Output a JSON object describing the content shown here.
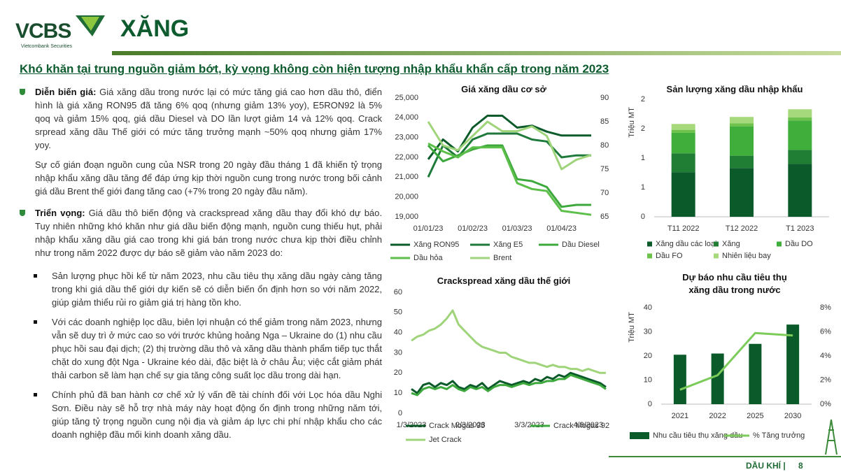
{
  "header": {
    "logo": "VCBS",
    "logo_subtitle": "Vietcombank Securities",
    "title": "XĂNG"
  },
  "heading": "Khó khăn tại trung nguồn giảm bớt, kỳ vọng không còn hiện tượng nhập khẩu khẩn cấp trong năm 2023",
  "price": {
    "label": "Diễn biến giá:",
    "text": "Giá xăng dầu trong nước lại có mức tăng giá cao hơn dầu thô, điển hình là giá xăng RON95 đã tăng 6% qoq (nhưng giảm 13% yoy), E5RON92 là 5% qoq và giảm 15% qoq, giá dầu Diesel và DO lần lượt giảm 14 và 12% qoq. Crack srpread xăng dầu Thế giới có mức tăng trưởng mạnh ~50% qoq nhưng giảm 17% yoy.",
    "note": "Sự cố gián đoạn nguồn cung của NSR trong 20 ngày đầu tháng 1 đã khiến tỷ trọng nhập khẩu xăng dầu tăng để đáp ứng kịp thời nguồn cung trong nước trong bối cảnh giá dầu Brent thế giới đang tăng cao (+7% trong 20 ngày đầu năm)."
  },
  "outlook": {
    "label": "Triển vọng:",
    "text": "Giá dầu thô biến động và crackspread xăng dầu thay đổi khó dự báo. Tuy nhiên những khó khăn như giá dầu biến động mạnh, nguồn cung thiếu hụt, phải nhập khẩu xăng dầu giá cao trong khi giá bán trong nước chưa kịp thời điều chỉnh như trong năm 2022 được dự báo sẽ giảm vào năm 2023 do:",
    "bullets": [
      "Sản lượng phục hồi kể từ năm 2023, nhu cầu tiêu thụ xăng dầu ngày càng tăng trong khi giá dầu thế giới dự kiến sẽ có diễn biến ổn định hơn so với năm 2022, giúp giảm thiểu rủi ro giảm giá trị hàng tồn kho.",
      "Với các doanh nghiệp lọc dầu, biên lợi nhuận có thể giảm trong năm 2023, nhưng vẫn sẽ duy trì ở mức cao so với trước khủng hoảng Nga – Ukraine do (1) nhu cầu phục hồi sau đại dịch; (2) thị trường dầu thô và xăng dầu thành phẩm tiếp tục thắt chặt do xung đột Nga - Ukraine kéo dài, đặc biệt là ở châu Âu; việc cắt giảm phát thải carbon sẽ làm hạn chế sự gia tăng công suất lọc dầu trong dài hạn.",
      "Chính phủ đã ban hành cơ chế xử lý vấn đề tài chính đối với Lọc hóa dầu Nghi Sơn. Điều này sẽ hỗ trợ nhà máy này hoạt động ổn định trong những năm tới, giúp tăng tỷ trọng nguồn cung nội địa và giảm áp lực chi phí nhập khẩu cho các doanh nghiệp đầu mối kinh doanh xăng dầu."
    ]
  },
  "footer": {
    "section": "DẦU KHÍ |",
    "page": "8"
  },
  "chart_data": [
    {
      "type": "line",
      "title": "Giá xăng dầu cơ sở",
      "categories": [
        "01/01/23",
        null,
        null,
        "01/02/23",
        null,
        null,
        "01/03/23",
        null,
        null,
        "01/04/23",
        null,
        null
      ],
      "ylim": [
        19000,
        25000
      ],
      "yticks": [
        {
          "value": 19000,
          "label": "19,000"
        },
        {
          "value": 20000,
          "label": "20,000"
        },
        {
          "value": 21000,
          "label": "21,000"
        },
        {
          "value": 22000,
          "label": "22,000"
        },
        {
          "value": 23000,
          "label": "23,000"
        },
        {
          "value": 24000,
          "label": "24,000"
        },
        {
          "value": 25000,
          "label": "25,000"
        }
      ],
      "y2lim": [
        65,
        90
      ],
      "y2ticks": [
        65,
        70,
        75,
        80,
        85,
        90
      ],
      "grid": false,
      "series": [
        {
          "name": "Xăng RON95",
          "color": "#0b5a2a",
          "values": [
            21900,
            22900,
            22300,
            23500,
            24100,
            24100,
            23500,
            23600,
            23300,
            23100,
            23100,
            23100
          ]
        },
        {
          "name": "Xăng E5",
          "color": "#1e7a3a",
          "values": [
            21000,
            22600,
            22000,
            22900,
            23200,
            23200,
            23200,
            22900,
            22800,
            22000,
            22100,
            22100
          ]
        },
        {
          "name": "Dầu Diesel",
          "color": "#3da83c",
          "values": [
            22600,
            21800,
            22100,
            22400,
            22600,
            22600,
            20900,
            20800,
            20500,
            19500,
            19600,
            19600
          ]
        },
        {
          "name": "Dầu hỏa",
          "color": "#5cbf4a",
          "values": [
            22700,
            22300,
            22000,
            22500,
            22500,
            22500,
            20700,
            20400,
            20300,
            19300,
            19200,
            19100
          ]
        },
        {
          "name": "Brent",
          "color": "#9fd47a",
          "axis": "y2",
          "values": [
            85,
            80,
            79,
            82,
            85,
            83,
            83,
            84,
            82,
            75,
            77,
            78
          ]
        }
      ]
    },
    {
      "type": "bar",
      "stacked": true,
      "title": "Sản lượng xăng dầu nhập khẩu",
      "ylabel": "Triệu MT",
      "categories": [
        "T11 2022",
        "T12 2022",
        "T1 2023"
      ],
      "ylim": [
        0,
        2
      ],
      "yticks": [
        0,
        {
          "value": 0.5,
          "label": "1"
        },
        1,
        {
          "value": 1.5,
          "label": "2"
        },
        2
      ],
      "grid": false,
      "series": [
        {
          "name": "Xăng dầu các loại",
          "color": "#0b5a2a",
          "values": [
            0.76,
            0.83,
            0.9
          ]
        },
        {
          "name": "Xăng",
          "color": "#1f7d34",
          "values": [
            0.32,
            0.21,
            0.24
          ]
        },
        {
          "name": "Dầu DO",
          "color": "#3fae3a",
          "values": [
            0.35,
            0.5,
            0.5
          ]
        },
        {
          "name": "Dầu FO",
          "color": "#6cc24a",
          "values": [
            0.05,
            0.05,
            0.05
          ]
        },
        {
          "name": "Nhiên liệu bay",
          "color": "#a6d97c",
          "values": [
            0.1,
            0.11,
            0.14
          ]
        }
      ]
    },
    {
      "type": "line",
      "title": "Crackspread xăng dầu thế giới",
      "categories": [
        "1/3/2023",
        null,
        null,
        null,
        null,
        null,
        null,
        null,
        null,
        null,
        "2/3/2023",
        null,
        null,
        null,
        null,
        null,
        null,
        null,
        null,
        null,
        "3/3/2023",
        null,
        null,
        null,
        null,
        null,
        null,
        null,
        null,
        null,
        "4/3/2023",
        null,
        null,
        null
      ],
      "ylim": [
        0,
        60
      ],
      "yticks": [
        0,
        10,
        20,
        30,
        40,
        50,
        60
      ],
      "grid": false,
      "series": [
        {
          "name": "Crack Mogas 95",
          "color": "#0b5a2a",
          "values": [
            12,
            10,
            14,
            15,
            13,
            15,
            14,
            16,
            13,
            12,
            14,
            13,
            15,
            12,
            14,
            16,
            15,
            14,
            15,
            16,
            15,
            17,
            16,
            18,
            17,
            19,
            18,
            20,
            19,
            18,
            17,
            16,
            15,
            13
          ]
        },
        {
          "name": "Crack Mogas 92",
          "color": "#3da83c",
          "values": [
            10,
            9,
            12,
            13,
            12,
            13,
            12,
            14,
            12,
            11,
            13,
            12,
            13,
            11,
            13,
            14,
            14,
            13,
            14,
            15,
            14,
            15,
            15,
            16,
            16,
            17,
            17,
            19,
            18,
            17,
            16,
            15,
            14,
            12
          ]
        },
        {
          "name": "Jet Crack",
          "color": "#9fd47a",
          "values": [
            36,
            38,
            39,
            41,
            42,
            44,
            47,
            51,
            44,
            41,
            38,
            35,
            33,
            32,
            31,
            30,
            30,
            28,
            27,
            26,
            25,
            25,
            24,
            23,
            24,
            23,
            23,
            22,
            22,
            21,
            22,
            21,
            20,
            20
          ]
        }
      ]
    },
    {
      "type": "bar",
      "title": "Dự báo nhu cầu tiêu thụ xăng dầu trong nước",
      "ylabel": "Triệu MT",
      "categories": [
        "2021",
        "2022",
        "2025",
        "2030"
      ],
      "ylim": [
        0,
        40
      ],
      "yticks": [
        0,
        10,
        20,
        30,
        40
      ],
      "y2lim": [
        0,
        8
      ],
      "y2ticks": [
        {
          "value": 0,
          "label": "0%"
        },
        {
          "value": 2,
          "label": "2%"
        },
        {
          "value": 4,
          "label": "4%"
        },
        {
          "value": 6,
          "label": "6%"
        },
        {
          "value": 8,
          "label": "8%"
        }
      ],
      "grid": false,
      "series": [
        {
          "name": "Nhu cầu tiêu thụ xăng dầu",
          "color": "#0b5a2a",
          "values": [
            20.5,
            21,
            25,
            33
          ]
        },
        {
          "name": "% Tăng trưởng",
          "color": "#7ccc5a",
          "type": "line",
          "axis": "y2",
          "values": [
            1.2,
            2.4,
            5.9,
            5.7
          ]
        }
      ]
    }
  ]
}
